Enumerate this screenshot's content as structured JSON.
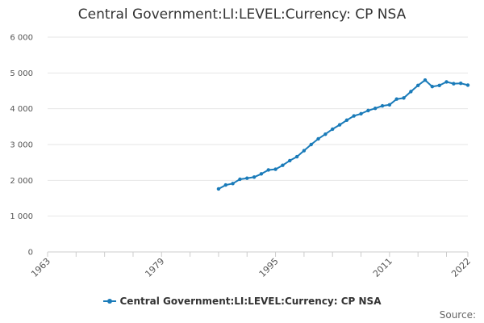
{
  "chart_data": {
    "type": "line",
    "title": "Central Government:LI:LEVEL:Currency: CP NSA",
    "xlabel": "",
    "ylabel": "",
    "xlim": [
      1963,
      2022
    ],
    "ylim": [
      0,
      6000
    ],
    "y_ticks": [
      0,
      1000,
      2000,
      3000,
      4000,
      5000,
      6000
    ],
    "y_tick_labels": [
      "0",
      "1 000",
      "2 000",
      "3 000",
      "4 000",
      "5 000",
      "6 000"
    ],
    "x_tick_labels": [
      "1963",
      "1979",
      "1995",
      "2011",
      "2022"
    ],
    "x_ticks": [
      1963,
      1979,
      1995,
      2011,
      2022
    ],
    "grid": true,
    "legend_position": "bottom",
    "series": [
      {
        "name": "Central Government:LI:LEVEL:Currency: CP NSA",
        "color": "#1a7bb9",
        "x": [
          1987,
          1988,
          1989,
          1990,
          1991,
          1992,
          1993,
          1994,
          1995,
          1996,
          1997,
          1998,
          1999,
          2000,
          2001,
          2002,
          2003,
          2004,
          2005,
          2006,
          2007,
          2008,
          2009,
          2010,
          2011,
          2012,
          2013,
          2014,
          2015,
          2016,
          2017,
          2018,
          2019,
          2020,
          2021,
          2022
        ],
        "values": [
          1760,
          1870,
          1910,
          2030,
          2060,
          2090,
          2180,
          2290,
          2310,
          2420,
          2550,
          2660,
          2830,
          3000,
          3160,
          3290,
          3430,
          3550,
          3680,
          3800,
          3860,
          3950,
          4010,
          4080,
          4110,
          4270,
          4300,
          4480,
          4650,
          4800,
          4620,
          4650,
          4750,
          4700,
          4710,
          4660
        ]
      }
    ]
  },
  "legend": {
    "label": "Central Government:LI:LEVEL:Currency: CP NSA"
  },
  "footer": {
    "source": "Source:"
  }
}
